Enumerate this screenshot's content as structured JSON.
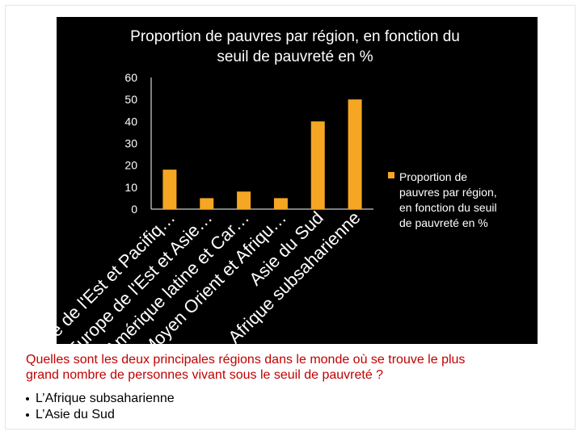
{
  "chart_data": {
    "type": "bar",
    "title": "Proportion de pauvres par région, en fonction du seuil de pauvreté en %",
    "title_lines": [
      "Proportion de pauvres par région, en fonction du",
      "seuil de pauvreté en %"
    ],
    "categories": [
      "Asie de l'Est et Pacifiq…",
      "Europe de l'Est et Asie…",
      "Amérique latine et Car…",
      "Moyen Orient et Afriqu…",
      "Asie du Sud",
      "Afrique subsaharienne"
    ],
    "series": [
      {
        "name": "Proportion de pauvres par région, en fonction du seuil de pauvreté en %",
        "values": [
          18,
          5,
          8,
          5,
          40,
          50
        ]
      }
    ],
    "legend_lines": [
      "Proportion de",
      "pauvres par région,",
      "en fonction du seuil",
      "de pauvreté en %"
    ],
    "yticks": [
      "0",
      "10",
      "20",
      "30",
      "40",
      "50",
      "60"
    ],
    "ylim": [
      0,
      60
    ],
    "grid": false,
    "legend_position": "right",
    "colors": {
      "background": "#000000",
      "bar": "#f5a623",
      "text": "#ffffff",
      "axis": "#ffffff"
    }
  },
  "question": {
    "line1": "Quelles sont les deux principales régions dans le monde où se trouve le plus",
    "line2": "grand  nombre de personnes vivant sous le seuil de pauvreté ?"
  },
  "answers": [
    "L’Afrique subsaharienne",
    "L’Asie du Sud"
  ]
}
